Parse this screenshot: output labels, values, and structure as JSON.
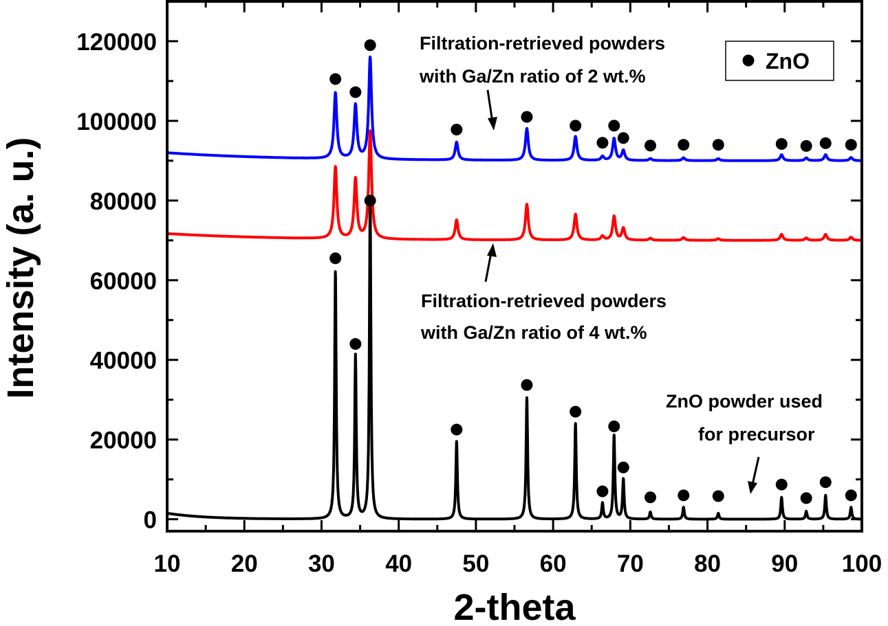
{
  "chart_data": {
    "type": "line",
    "xlabel": "2-theta",
    "ylabel": "Intensity (a. u.)",
    "xlim": [
      10,
      100
    ],
    "ylim": [
      -3000,
      130000
    ],
    "xticks": [
      10,
      20,
      30,
      40,
      50,
      60,
      70,
      80,
      90,
      100
    ],
    "yticks": [
      0,
      20000,
      40000,
      60000,
      80000,
      100000,
      120000
    ],
    "grid": false,
    "legend": {
      "position": "top-right",
      "entries": [
        {
          "label": "ZnO",
          "marker": "circle",
          "color": "#000000"
        }
      ]
    },
    "series": [
      {
        "name": "ZnO powder used for precursor",
        "color": "#000000",
        "baseline": 0,
        "baseline_rise": 1500,
        "baseline_decay": 5,
        "peak_width": 0.12,
        "peaks": [
          [
            31.8,
            62000
          ],
          [
            34.4,
            41000
          ],
          [
            36.3,
            80000
          ],
          [
            47.5,
            19500
          ],
          [
            56.6,
            30500
          ],
          [
            62.9,
            24000
          ],
          [
            66.4,
            4000
          ],
          [
            67.9,
            21000
          ],
          [
            69.1,
            10000
          ],
          [
            72.6,
            1800
          ],
          [
            76.9,
            3000
          ],
          [
            81.4,
            1500
          ],
          [
            89.6,
            5500
          ],
          [
            92.8,
            2000
          ],
          [
            95.3,
            6000
          ],
          [
            98.6,
            3000
          ]
        ]
      },
      {
        "name": "Filtration-retrieved powders with Ga/Zn ratio of 4 wt.%",
        "color": "#ff0000",
        "baseline": 70000,
        "baseline_rise": 1700,
        "baseline_decay": 15,
        "peak_width": 0.22,
        "peaks": [
          [
            31.8,
            18000
          ],
          [
            34.4,
            15000
          ],
          [
            36.3,
            27000
          ],
          [
            47.5,
            5000
          ],
          [
            56.6,
            9000
          ],
          [
            62.9,
            6500
          ],
          [
            66.4,
            1000
          ],
          [
            67.9,
            6000
          ],
          [
            69.1,
            3000
          ],
          [
            72.6,
            500
          ],
          [
            76.9,
            700
          ],
          [
            81.4,
            400
          ],
          [
            89.6,
            1500
          ],
          [
            92.8,
            600
          ],
          [
            95.3,
            1500
          ],
          [
            98.6,
            800
          ]
        ]
      },
      {
        "name": "Filtration-retrieved powders with Ga/Zn ratio of 2 wt.%",
        "color": "#0000ff",
        "baseline": 90000,
        "baseline_rise": 2000,
        "baseline_decay": 15,
        "peak_width": 0.22,
        "peaks": [
          [
            31.8,
            16500
          ],
          [
            34.4,
            13500
          ],
          [
            36.3,
            25500
          ],
          [
            47.5,
            4500
          ],
          [
            56.6,
            8000
          ],
          [
            62.9,
            6000
          ],
          [
            66.4,
            1000
          ],
          [
            67.9,
            5500
          ],
          [
            69.1,
            2500
          ],
          [
            72.6,
            500
          ],
          [
            76.9,
            700
          ],
          [
            81.4,
            500
          ],
          [
            89.6,
            1500
          ],
          [
            92.8,
            700
          ],
          [
            95.3,
            1500
          ],
          [
            98.6,
            800
          ]
        ]
      }
    ],
    "markers": {
      "label": "ZnO",
      "points": [
        [
          31.8,
          65500
        ],
        [
          34.4,
          44000
        ],
        [
          36.3,
          80000
        ],
        [
          47.5,
          22500
        ],
        [
          56.6,
          33700
        ],
        [
          62.9,
          27000
        ],
        [
          66.4,
          7000
        ],
        [
          67.9,
          23300
        ],
        [
          69.1,
          13000
        ],
        [
          72.6,
          5500
        ],
        [
          76.9,
          6000
        ],
        [
          81.4,
          5800
        ],
        [
          89.6,
          8700
        ],
        [
          92.8,
          5300
        ],
        [
          95.3,
          9300
        ],
        [
          98.6,
          6000
        ],
        [
          31.8,
          110500
        ],
        [
          34.4,
          107200
        ],
        [
          36.3,
          119000
        ],
        [
          47.5,
          97800
        ],
        [
          56.6,
          101000
        ],
        [
          62.9,
          98800
        ],
        [
          66.4,
          94500
        ],
        [
          67.9,
          98800
        ],
        [
          69.1,
          95700
        ],
        [
          72.6,
          93800
        ],
        [
          76.9,
          94000
        ],
        [
          81.4,
          94000
        ],
        [
          89.6,
          94200
        ],
        [
          92.8,
          93700
        ],
        [
          95.3,
          94400
        ],
        [
          98.6,
          94000
        ]
      ]
    },
    "annotations": {
      "blue": [
        "Filtration-retrieved powders",
        "with Ga/Zn ratio of 2 wt.%"
      ],
      "red": [
        "Filtration-retrieved powders",
        "with Ga/Zn ratio of 4 wt.%"
      ],
      "black": [
        "ZnO powder used",
        "for precursor"
      ]
    }
  }
}
